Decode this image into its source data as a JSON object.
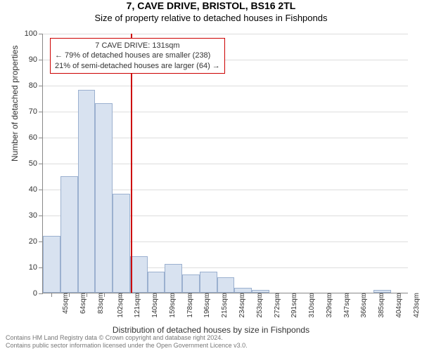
{
  "title": "7, CAVE DRIVE, BRISTOL, BS16 2TL",
  "subtitle": "Size of property relative to detached houses in Fishponds",
  "y_axis": {
    "title": "Number of detached properties",
    "min": 0,
    "max": 100,
    "ticks": [
      0,
      10,
      20,
      30,
      40,
      50,
      60,
      70,
      80,
      90,
      100
    ]
  },
  "x_axis": {
    "title": "Distribution of detached houses by size in Fishponds",
    "labels": [
      "45sqm",
      "64sqm",
      "83sqm",
      "102sqm",
      "121sqm",
      "140sqm",
      "159sqm",
      "178sqm",
      "196sqm",
      "215sqm",
      "234sqm",
      "253sqm",
      "272sqm",
      "291sqm",
      "310sqm",
      "329sqm",
      "347sqm",
      "366sqm",
      "385sqm",
      "404sqm",
      "423sqm"
    ]
  },
  "bars": {
    "values": [
      22,
      45,
      78,
      73,
      38,
      14,
      8,
      11,
      7,
      8,
      6,
      2,
      1,
      0,
      0,
      0,
      0,
      0,
      0,
      1,
      0
    ],
    "fill": "#d8e2f0",
    "border": "#9bb0cf"
  },
  "reference": {
    "position_index": 4.55,
    "color": "#cc0000"
  },
  "annotation": {
    "lines": [
      "7 CAVE DRIVE: 131sqm",
      "← 79% of detached houses are smaller (238)",
      "21% of semi-detached houses are larger (64) →"
    ]
  },
  "footer": {
    "line1": "Contains HM Land Registry data © Crown copyright and database right 2024.",
    "line2": "Contains public sector information licensed under the Open Government Licence v3.0."
  },
  "style": {
    "title_fontsize": 14,
    "subtitle_fontsize": 13,
    "axis_label_fontsize": 12,
    "tick_fontsize": 11,
    "grid_color": "#dddddd",
    "axis_color": "#888888",
    "background": "#ffffff"
  }
}
